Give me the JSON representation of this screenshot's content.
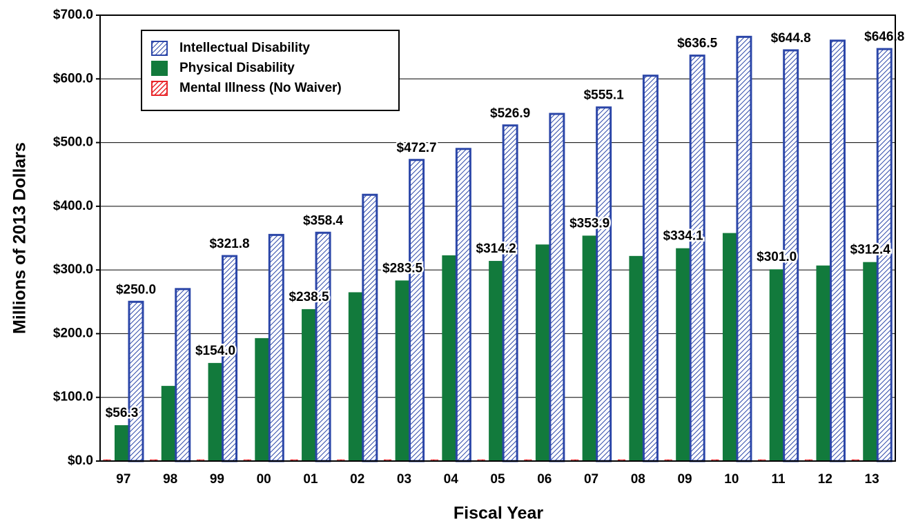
{
  "chart_data": {
    "type": "bar",
    "y_label": "Millions of 2013 Dollars",
    "x_label": "Fiscal Year",
    "categories": [
      "97",
      "98",
      "99",
      "00",
      "01",
      "02",
      "03",
      "04",
      "05",
      "06",
      "07",
      "08",
      "09",
      "10",
      "11",
      "12",
      "13"
    ],
    "series": [
      {
        "name": "Mental Illness (No Waiver)",
        "color": "#e8262a",
        "pattern": "hatch",
        "values": [
          2,
          2,
          2,
          2,
          2,
          2,
          2,
          2,
          2,
          2,
          2,
          2,
          2,
          2,
          2,
          2,
          2
        ],
        "value_labels": [
          null,
          null,
          null,
          null,
          null,
          null,
          null,
          null,
          null,
          null,
          null,
          null,
          null,
          null,
          null,
          null,
          null
        ]
      },
      {
        "name": "Physical Disability",
        "color": "#127a3c",
        "pattern": "solid",
        "values": [
          56.3,
          118,
          154.0,
          193,
          238.5,
          265,
          283.5,
          323,
          314.2,
          340,
          353.9,
          322,
          334.1,
          358,
          301.0,
          307,
          312.4
        ],
        "value_labels": [
          "$56.3",
          null,
          "$154.0",
          null,
          "$238.5",
          null,
          "$283.5",
          null,
          "$314.2",
          null,
          "$353.9",
          null,
          "$334.1",
          null,
          "$301.0",
          null,
          "$312.4"
        ]
      },
      {
        "name": "Intellectual Disability",
        "color": "#2b46a8",
        "pattern": "hatch",
        "values": [
          250.0,
          270,
          321.8,
          355,
          358.4,
          418,
          472.7,
          490,
          526.9,
          545,
          555.1,
          605,
          636.5,
          666,
          644.8,
          660,
          646.8
        ],
        "value_labels": [
          "$250.0",
          null,
          "$321.8",
          null,
          "$358.4",
          null,
          "$472.7",
          null,
          "$526.9",
          null,
          "$555.1",
          null,
          "$636.5",
          null,
          "$644.8",
          null,
          "$646.8"
        ]
      }
    ],
    "legend_order": [
      2,
      1,
      0
    ],
    "ylim": [
      0,
      700
    ],
    "yticks": [
      {
        "value": 0,
        "label": "$0.0"
      },
      {
        "value": 100,
        "label": "$100.0"
      },
      {
        "value": 200,
        "label": "$200.0"
      },
      {
        "value": 300,
        "label": "$300.0"
      },
      {
        "value": 400,
        "label": "$400.0"
      },
      {
        "value": 500,
        "label": "$500.0"
      },
      {
        "value": 600,
        "label": "$600.0"
      },
      {
        "value": 700,
        "label": "$700.0"
      }
    ],
    "grid": true,
    "legend": "upper left"
  }
}
